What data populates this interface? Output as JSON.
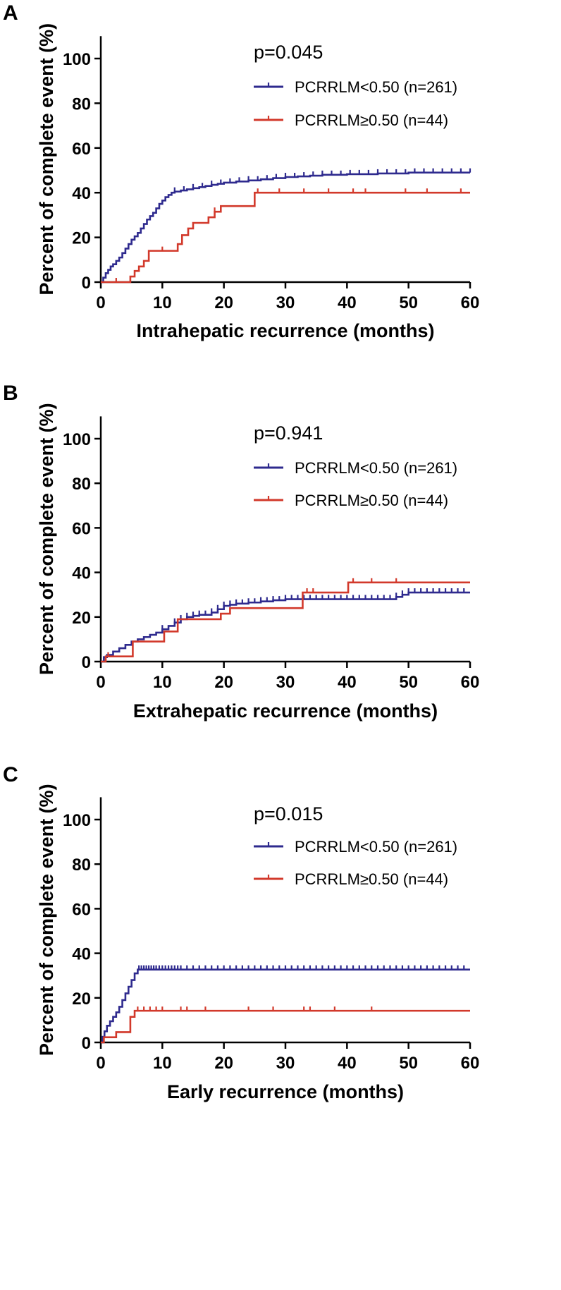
{
  "chart_data": [
    {
      "type": "line",
      "panel_label": "A",
      "xlabel": "Intrahepatic recurrence (months)",
      "ylabel": "Percent of complete event (%)",
      "xlim": [
        0,
        60
      ],
      "ylim": [
        0,
        110
      ],
      "xticks": [
        0,
        10,
        20,
        30,
        40,
        50,
        60
      ],
      "yticks": [
        0,
        20,
        40,
        60,
        80,
        100
      ],
      "p_value": "p=0.045",
      "grid": false,
      "legend_position": "top-right",
      "series": [
        {
          "name": "PCRRLM<0.50 (n=261)",
          "color": "#2e2a8e",
          "x": [
            0,
            0.4,
            0.8,
            1.2,
            1.6,
            2.0,
            2.5,
            3.0,
            3.5,
            4.0,
            4.5,
            5.0,
            5.5,
            6.0,
            6.5,
            7.0,
            7.5,
            8.0,
            8.5,
            9.0,
            9.5,
            10.0,
            10.5,
            11.0,
            11.5,
            12.0,
            13.0,
            14.0,
            15.0,
            16.0,
            17.0,
            18.0,
            19.0,
            20.0,
            22.0,
            24.0,
            26.0,
            28.0,
            30.0,
            32.0,
            34.0,
            36.0,
            40.0,
            45.0,
            50.0,
            55.0,
            60.0
          ],
          "y": [
            0,
            2,
            4,
            5.5,
            7,
            8,
            9.5,
            11,
            13,
            15,
            17,
            19,
            20.5,
            22,
            24,
            26,
            28,
            29.5,
            31,
            33,
            35,
            36.5,
            38,
            39,
            40,
            40.5,
            41,
            41.5,
            42,
            42.5,
            43,
            43.5,
            44,
            44.5,
            45,
            45.5,
            46,
            46.5,
            47,
            47.3,
            47.6,
            48,
            48.3,
            48.6,
            49,
            49,
            49
          ],
          "censor_x": [
            12,
            13.5,
            15,
            16.5,
            18,
            19.5,
            21,
            22.5,
            24,
            25.5,
            27,
            28.5,
            30,
            31.5,
            33,
            34.5,
            36,
            37.5,
            39,
            40.5,
            42,
            43.5,
            45,
            46.5,
            48,
            49.5,
            51,
            52.5,
            54,
            55.5,
            57,
            58.5,
            60
          ]
        },
        {
          "name": "PCRRLM≥0.50 (n=44)",
          "color": "#d2392b",
          "x": [
            0,
            4.8,
            5.5,
            6.2,
            7.0,
            7.8,
            9.5,
            11.5,
            12.5,
            13.2,
            14.2,
            15.0,
            17.5,
            18.5,
            19.5,
            24.5,
            25.0,
            60.0
          ],
          "y": [
            0,
            2.5,
            5,
            7,
            9.5,
            14,
            14,
            14,
            17,
            21,
            24,
            26.5,
            29,
            31.5,
            34,
            34,
            40,
            40
          ],
          "censor_x": [
            2.5,
            10,
            18.5,
            25.5,
            29,
            33,
            37,
            41,
            43,
            49.5,
            53,
            58.5
          ]
        }
      ]
    },
    {
      "type": "line",
      "panel_label": "B",
      "xlabel": "Extrahepatic recurrence (months)",
      "ylabel": "Percent of complete event (%)",
      "xlim": [
        0,
        60
      ],
      "ylim": [
        0,
        110
      ],
      "xticks": [
        0,
        10,
        20,
        30,
        40,
        50,
        60
      ],
      "yticks": [
        0,
        20,
        40,
        60,
        80,
        100
      ],
      "p_value": "p=0.941",
      "grid": false,
      "legend_position": "top-right",
      "series": [
        {
          "name": "PCRRLM<0.50 (n=261)",
          "color": "#2e2a8e",
          "x": [
            0,
            0.5,
            1.0,
            2.0,
            3.0,
            4.0,
            5.0,
            6.0,
            7.0,
            8.0,
            9.0,
            10.0,
            11.0,
            12.0,
            13.0,
            14.0,
            15.0,
            16.0,
            17.0,
            18.0,
            19.0,
            20.0,
            21.0,
            22.0,
            24.0,
            26.0,
            28.0,
            30.0,
            35.0,
            40.0,
            45.0,
            48.0,
            49.0,
            50.0,
            60.0
          ],
          "y": [
            0,
            2,
            3,
            4.5,
            6,
            7.5,
            9,
            10,
            11,
            12,
            13,
            14.5,
            16,
            17.5,
            19,
            20,
            20.5,
            21,
            21,
            22,
            23.5,
            25,
            25.5,
            26,
            26.5,
            27,
            27.5,
            28,
            28,
            28,
            28,
            29,
            30,
            31,
            31
          ],
          "censor_x": [
            10,
            12,
            13,
            14,
            15,
            16,
            17,
            18,
            19,
            20,
            21,
            22,
            23,
            24,
            25,
            26,
            27,
            28,
            29,
            30,
            31,
            32,
            33,
            34,
            35,
            36,
            37,
            38,
            39,
            40,
            41,
            42,
            43,
            44,
            45,
            46,
            47,
            48,
            49,
            50,
            51,
            52,
            53,
            54,
            55,
            56,
            57,
            58,
            59
          ]
        },
        {
          "name": "PCRRLM≥0.50 (n=44)",
          "color": "#d2392b",
          "x": [
            0,
            0.8,
            4.7,
            5.2,
            8.5,
            10.3,
            12.5,
            17.5,
            19.5,
            21,
            32.3,
            32.8,
            40.2,
            60
          ],
          "y": [
            0,
            2.3,
            2.3,
            9,
            9,
            13.5,
            19,
            19,
            21.5,
            24,
            24,
            31,
            35.5,
            35.5
          ],
          "censor_x": [
            1.2,
            33.5,
            34.5,
            41,
            44,
            48
          ]
        }
      ]
    },
    {
      "type": "line",
      "panel_label": "C",
      "xlabel": "Early recurrence (months)",
      "ylabel": "Percent of complete event (%)",
      "xlim": [
        0,
        60
      ],
      "ylim": [
        0,
        110
      ],
      "xticks": [
        0,
        10,
        20,
        30,
        40,
        50,
        60
      ],
      "yticks": [
        0,
        20,
        40,
        60,
        80,
        100
      ],
      "p_value": "p=0.015",
      "grid": false,
      "legend_position": "top-right",
      "series": [
        {
          "name": "PCRRLM<0.50 (n=261)",
          "color": "#2e2a8e",
          "x": [
            0,
            0.3,
            0.6,
            1.0,
            1.5,
            2.0,
            2.5,
            3.0,
            3.5,
            4.0,
            4.5,
            5.0,
            5.5,
            6.0,
            60
          ],
          "y": [
            0,
            2.5,
            5,
            7.5,
            9.5,
            11.5,
            13.5,
            16,
            19,
            22,
            25,
            28,
            31,
            32.7,
            32.7
          ],
          "censor_x": [
            6.2,
            6.6,
            7,
            7.4,
            7.8,
            8.2,
            8.6,
            9,
            9.5,
            10,
            10.5,
            11,
            11.5,
            12,
            12.5,
            13,
            14,
            15,
            16,
            17,
            18,
            19,
            20,
            21,
            22,
            23,
            24,
            25,
            26,
            27,
            28,
            29,
            30,
            31,
            32,
            33,
            34,
            35,
            36,
            37,
            38,
            39,
            40,
            41,
            42,
            43,
            44,
            45,
            46,
            47,
            48,
            49,
            50,
            51,
            52,
            53,
            54,
            55,
            56,
            57,
            58,
            59
          ]
        },
        {
          "name": "PCRRLM≥0.50 (n=44)",
          "color": "#d2392b",
          "x": [
            0,
            0.5,
            2.5,
            4.8,
            5.5,
            60
          ],
          "y": [
            0,
            2.3,
            4.6,
            11.5,
            14.2,
            14.2
          ],
          "censor_x": [
            6,
            7,
            8,
            9,
            10,
            13,
            14,
            17,
            24,
            28,
            33,
            34,
            38,
            44
          ]
        }
      ]
    }
  ]
}
